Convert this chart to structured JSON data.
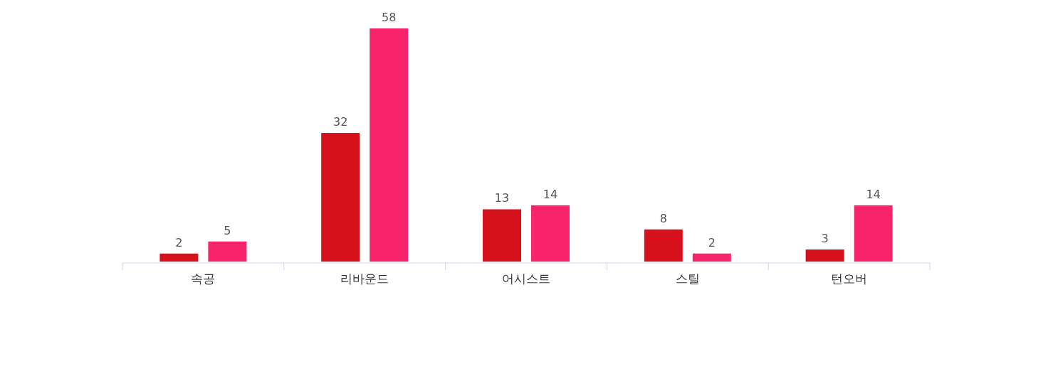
{
  "chart_data": {
    "type": "bar",
    "categories": [
      "속공",
      "리바운드",
      "어시스트",
      "스틸",
      "턴오버"
    ],
    "series": [
      {
        "color": "#d7111b",
        "values": [
          2,
          32,
          13,
          8,
          3
        ]
      },
      {
        "color": "#f7236b",
        "values": [
          5,
          58,
          14,
          2,
          14
        ]
      }
    ],
    "data_labels": true
  }
}
